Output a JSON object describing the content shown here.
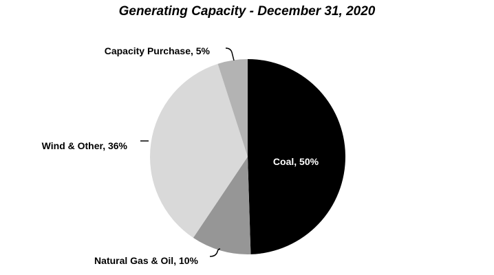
{
  "chart_data": {
    "type": "pie",
    "title": "Generating Capacity - December 31, 2020",
    "slices": [
      {
        "label": "Coal, 50%",
        "name": "Coal",
        "value": 50,
        "color": "#000000"
      },
      {
        "label": "Natural Gas & Oil, 10%",
        "name": "Natural Gas & Oil",
        "value": 10,
        "color": "#969696"
      },
      {
        "label": "Wind & Other, 36%",
        "name": "Wind & Other",
        "value": 36,
        "color": "#d9d9d9"
      },
      {
        "label": "Capacity Purchase, 5%",
        "name": "Capacity Purchase",
        "value": 5,
        "color": "#b3b3b3"
      }
    ],
    "start_angle": "12 o'clock",
    "direction": "clockwise",
    "legend": "none"
  }
}
